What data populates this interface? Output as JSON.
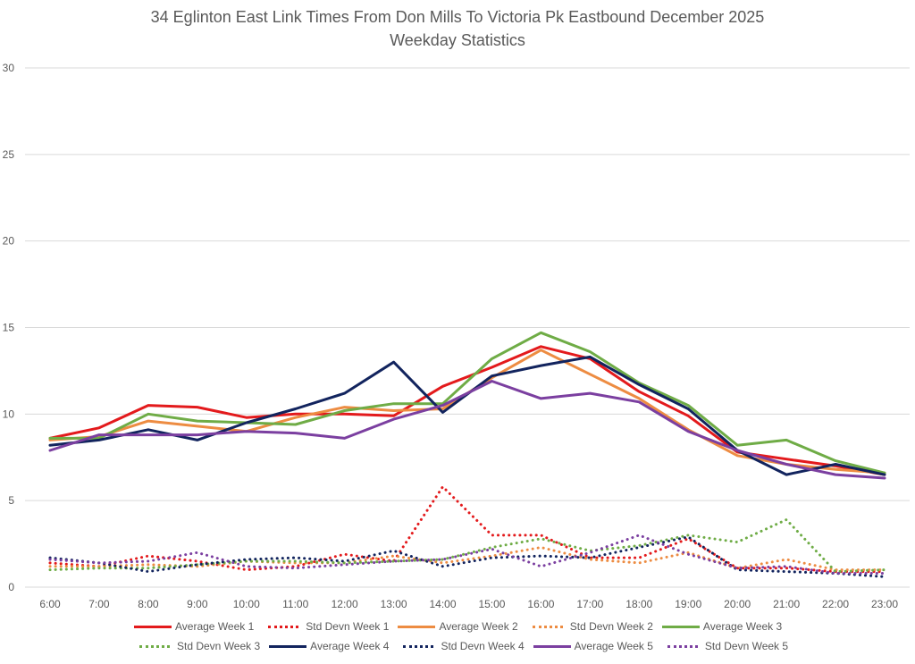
{
  "chart_data": {
    "type": "line",
    "title": "34 Eglinton East Link Times From Don Mills To Victoria Pk Eastbound December 2025",
    "subtitle": "Weekday Statistics",
    "xlabel": "",
    "ylabel": "",
    "ylim": [
      0,
      30
    ],
    "yticks": [
      0,
      5,
      10,
      15,
      20,
      25,
      30
    ],
    "grid": true,
    "legend_position": "bottom",
    "categories": [
      "6:00",
      "7:00",
      "8:00",
      "9:00",
      "10:00",
      "11:00",
      "12:00",
      "13:00",
      "14:00",
      "15:00",
      "16:00",
      "17:00",
      "18:00",
      "19:00",
      "20:00",
      "21:00",
      "22:00",
      "23:00"
    ],
    "series": [
      {
        "name": "Average Week 1",
        "style": "solid",
        "color": "#e31a1c",
        "values": [
          8.6,
          9.2,
          10.5,
          10.4,
          9.8,
          10.0,
          10.0,
          9.9,
          11.6,
          12.7,
          13.9,
          13.2,
          11.3,
          9.9,
          7.8,
          7.4,
          7.0,
          6.5
        ]
      },
      {
        "name": "Std Devn Week 1",
        "style": "dotted",
        "color": "#e31a1c",
        "values": [
          1.4,
          1.2,
          1.8,
          1.5,
          1.0,
          1.2,
          1.9,
          1.5,
          5.8,
          3.0,
          3.0,
          1.7,
          1.7,
          2.8,
          1.1,
          1.1,
          0.9,
          0.9
        ]
      },
      {
        "name": "Average Week 2",
        "style": "solid",
        "color": "#ed8c42",
        "values": [
          8.5,
          8.7,
          9.6,
          9.3,
          9.0,
          9.8,
          10.4,
          10.2,
          10.3,
          12.1,
          13.7,
          12.3,
          10.9,
          9.1,
          7.6,
          7.1,
          6.8,
          6.6
        ]
      },
      {
        "name": "Std Devn Week 2",
        "style": "dotted",
        "color": "#ed8c42",
        "values": [
          1.2,
          1.2,
          1.3,
          1.2,
          1.5,
          1.4,
          1.4,
          1.8,
          1.4,
          1.8,
          2.3,
          1.6,
          1.4,
          2.0,
          1.1,
          1.6,
          1.0,
          1.0
        ]
      },
      {
        "name": "Average Week 3",
        "style": "solid",
        "color": "#6fac46",
        "values": [
          8.6,
          8.6,
          10.0,
          9.6,
          9.5,
          9.4,
          10.2,
          10.6,
          10.6,
          13.2,
          14.7,
          13.6,
          11.8,
          10.5,
          8.2,
          8.5,
          7.3,
          6.6
        ]
      },
      {
        "name": "Std Devn Week 3",
        "style": "dotted",
        "color": "#6fac46",
        "values": [
          1.0,
          1.1,
          1.1,
          1.3,
          1.5,
          1.5,
          1.4,
          1.5,
          1.6,
          2.3,
          2.8,
          2.1,
          2.4,
          3.0,
          2.6,
          3.9,
          0.9,
          1.0
        ]
      },
      {
        "name": "Average Week 4",
        "style": "solid",
        "color": "#12245e",
        "values": [
          8.2,
          8.5,
          9.1,
          8.5,
          9.5,
          10.3,
          11.2,
          13.0,
          10.1,
          12.2,
          12.8,
          13.3,
          11.7,
          10.3,
          7.9,
          6.5,
          7.1,
          6.5
        ]
      },
      {
        "name": "Std Devn Week 4",
        "style": "dotted",
        "color": "#12245e",
        "values": [
          1.7,
          1.4,
          0.9,
          1.3,
          1.6,
          1.7,
          1.5,
          2.1,
          1.2,
          1.7,
          1.8,
          1.7,
          2.3,
          2.9,
          1.0,
          0.9,
          0.8,
          0.6
        ]
      },
      {
        "name": "Average Week 5",
        "style": "solid",
        "color": "#7b3fa0",
        "values": [
          7.9,
          8.8,
          8.8,
          8.8,
          9.0,
          8.9,
          8.6,
          9.7,
          10.5,
          11.9,
          10.9,
          11.2,
          10.7,
          9.0,
          7.9,
          7.1,
          6.5,
          6.3
        ]
      },
      {
        "name": "Std Devn Week 5",
        "style": "dotted",
        "color": "#7b3fa0",
        "values": [
          1.6,
          1.4,
          1.5,
          2.0,
          1.2,
          1.1,
          1.3,
          1.5,
          1.6,
          2.2,
          1.2,
          2.0,
          3.0,
          1.9,
          1.1,
          1.2,
          0.8,
          0.8
        ]
      }
    ]
  }
}
